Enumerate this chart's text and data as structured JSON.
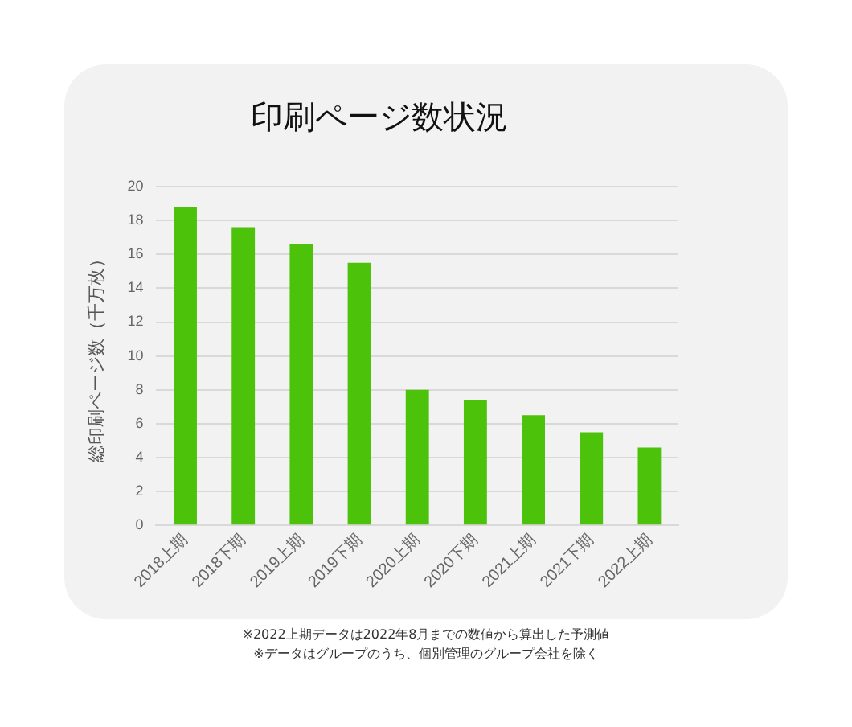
{
  "chart_data": {
    "type": "bar",
    "title": "印刷ページ数状況",
    "ylabel": "総印刷ページ数（千万枚）",
    "categories": [
      "2018上期",
      "2018下期",
      "2019上期",
      "2019下期",
      "2020上期",
      "2020下期",
      "2021上期",
      "2021下期",
      "2022上期"
    ],
    "values": [
      18.8,
      17.6,
      16.6,
      15.5,
      8.0,
      7.4,
      6.5,
      5.5,
      4.6
    ],
    "color": "#4cc20a",
    "ylim": [
      0,
      20
    ],
    "yticks": [
      0,
      2,
      4,
      6,
      8,
      10,
      12,
      14,
      16,
      18,
      20
    ],
    "grid": "y",
    "legend": false,
    "annotations": [
      "※2022上期データは2022年8月までの数値から算出した予測値",
      "※データはグループのうち、個別管理のグループ会社を除く"
    ]
  }
}
